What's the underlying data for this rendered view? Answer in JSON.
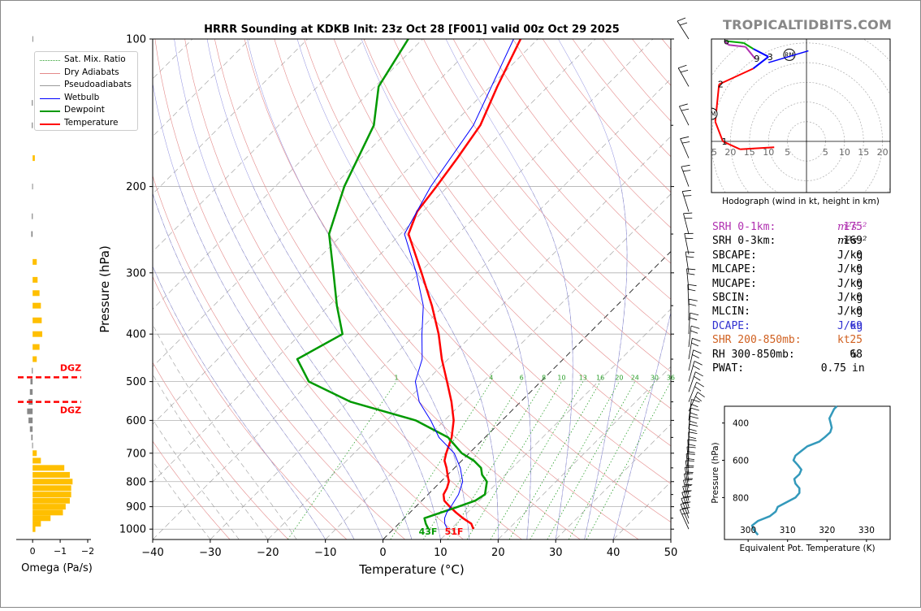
{
  "title": "HRRR Sounding at KDKB Init: 23z Oct 28 [F001] valid 00z Oct 29 2025",
  "watermark": "TROPICALTIDBITS.COM",
  "legend": [
    {
      "label": "Sat. Mix. Ratio",
      "color": "#2ca02c",
      "style": "dotted",
      "width": 1
    },
    {
      "label": "Dry Adiabats",
      "color": "#e48a8a",
      "style": "solid",
      "width": 1
    },
    {
      "label": "Pseudoadiabats",
      "color": "#9a9a9a",
      "style": "solid",
      "width": 1
    },
    {
      "label": "Wetbulb",
      "color": "#0000ff",
      "style": "solid",
      "width": 1
    },
    {
      "label": "Dewpoint",
      "color": "#009900",
      "style": "solid",
      "width": 2.5
    },
    {
      "label": "Temperature",
      "color": "#ff0000",
      "style": "solid",
      "width": 2.5
    }
  ],
  "surface_labels": {
    "dewpoint": "43F",
    "temperature": "51F"
  },
  "dgz_label": "DGZ",
  "mixing_ratio_labels": [
    "1",
    "4",
    "6",
    "8",
    "10",
    "13",
    "16",
    "20",
    "24",
    "30",
    "36"
  ],
  "stats": [
    {
      "label": "SRH 0-1km:",
      "value": "175",
      "unit": "m²s⁻²",
      "color": "#b030b0"
    },
    {
      "label": "SRH 0-3km:",
      "value": "169",
      "unit": "m²s⁻²",
      "color": "#000000"
    },
    {
      "label": "SBCAPE:",
      "value": "0",
      "unit": "J/kg",
      "color": "#000000"
    },
    {
      "label": "MLCAPE:",
      "value": "0",
      "unit": "J/kg",
      "color": "#000000"
    },
    {
      "label": "MUCAPE:",
      "value": "0",
      "unit": "J/kg",
      "color": "#000000"
    },
    {
      "label": "SBCIN:",
      "value": "0",
      "unit": "J/kg",
      "color": "#000000"
    },
    {
      "label": "MLCIN:",
      "value": "0",
      "unit": "J/kg",
      "color": "#000000"
    },
    {
      "label": "DCAPE:",
      "value": "69",
      "unit": "J/kg",
      "color": "#3030d0"
    },
    {
      "label": "SHR 200-850mb:",
      "value": "25",
      "unit": "kt",
      "color": "#d06020"
    },
    {
      "label": "RH 300-850mb:",
      "value": "68",
      "unit": "%",
      "color": "#000000"
    },
    {
      "label": "PWAT:",
      "value": "0.75",
      "unit": "in",
      "color": "#000000"
    }
  ],
  "hodograph": {
    "caption": "Hodograph (wind in kt, height in km)",
    "ring_labels": [
      "25",
      "20",
      "15",
      "10",
      "5",
      "5",
      "10",
      "15",
      "20"
    ],
    "markers": {
      "rm": "RM",
      "lm": "LM"
    },
    "height_labels": [
      "1",
      "2",
      "3",
      "6",
      "9"
    ]
  },
  "chart_data": [
    {
      "type": "line",
      "name": "skew-t",
      "title": "HRRR Sounding at KDKB Init: 23z Oct 28 [F001] valid 00z Oct 29 2025",
      "xlabel": "Temperature (°C)",
      "ylabel": "Pressure (hPa)",
      "xlim": [
        -40,
        50
      ],
      "ylim": [
        1050,
        100
      ],
      "y_scale": "log",
      "skew": "45°",
      "xticks": [
        -40,
        -30,
        -20,
        -10,
        0,
        10,
        20,
        30,
        40,
        50
      ],
      "yticks": [
        100,
        200,
        300,
        400,
        500,
        600,
        700,
        800,
        900,
        1000
      ],
      "series": [
        {
          "name": "Temperature",
          "color": "#ff0000",
          "points": [
            [
              1000,
              13.9
            ],
            [
              975,
              12.6
            ],
            [
              950,
              10.2
            ],
            [
              925,
              8.0
            ],
            [
              900,
              5.9
            ],
            [
              875,
              3.9
            ],
            [
              850,
              2.7
            ],
            [
              825,
              2.2
            ],
            [
              800,
              1.4
            ],
            [
              775,
              0.0
            ],
            [
              750,
              -1.4
            ],
            [
              725,
              -3.0
            ],
            [
              700,
              -4.0
            ],
            [
              650,
              -5.8
            ],
            [
              600,
              -8.4
            ],
            [
              550,
              -12.0
            ],
            [
              500,
              -16.3
            ],
            [
              450,
              -21.1
            ],
            [
              400,
              -26.0
            ],
            [
              350,
              -32.1
            ],
            [
              300,
              -39.6
            ],
            [
              250,
              -48.6
            ],
            [
              225,
              -51.0
            ],
            [
              200,
              -52.0
            ],
            [
              175,
              -53.3
            ],
            [
              150,
              -55.0
            ],
            [
              125,
              -58.8
            ],
            [
              100,
              -63.0
            ]
          ]
        },
        {
          "name": "Dewpoint",
          "color": "#009900",
          "points": [
            [
              1000,
              6.1
            ],
            [
              975,
              4.7
            ],
            [
              950,
              3.5
            ],
            [
              925,
              5.4
            ],
            [
              900,
              7.4
            ],
            [
              875,
              9.3
            ],
            [
              850,
              9.9
            ],
            [
              800,
              8.0
            ],
            [
              775,
              6.0
            ],
            [
              750,
              4.6
            ],
            [
              725,
              2.1
            ],
            [
              700,
              -1.3
            ],
            [
              650,
              -6.4
            ],
            [
              600,
              -15.0
            ],
            [
              550,
              -29.5
            ],
            [
              500,
              -40.3
            ],
            [
              450,
              -46.2
            ],
            [
              400,
              -42.7
            ],
            [
              350,
              -48.6
            ],
            [
              300,
              -54.9
            ],
            [
              250,
              -62.4
            ],
            [
              200,
              -68.0
            ],
            [
              150,
              -73.5
            ],
            [
              125,
              -79.4
            ],
            [
              100,
              -82.5
            ]
          ]
        },
        {
          "name": "Wetbulb",
          "color": "#0000ff",
          "points": [
            [
              1000,
              9.4
            ],
            [
              975,
              8.0
            ],
            [
              950,
              7.0
            ],
            [
              925,
              6.4
            ],
            [
              900,
              6.1
            ],
            [
              850,
              5.3
            ],
            [
              800,
              3.8
            ],
            [
              750,
              1.0
            ],
            [
              700,
              -2.6
            ],
            [
              650,
              -8.0
            ],
            [
              600,
              -12.4
            ],
            [
              550,
              -17.6
            ],
            [
              500,
              -21.8
            ],
            [
              450,
              -24.5
            ],
            [
              400,
              -28.9
            ],
            [
              350,
              -33.6
            ],
            [
              300,
              -40.5
            ],
            [
              250,
              -49.3
            ],
            [
              200,
              -53.0
            ],
            [
              150,
              -56.2
            ],
            [
              100,
              -64.2
            ]
          ]
        }
      ]
    },
    {
      "type": "bar",
      "name": "omega",
      "xlabel": "Omega (Pa/s)",
      "xlim": [
        0.3,
        -2.0
      ],
      "xticks": [
        0,
        -1,
        -2
      ],
      "dgz_top": 490,
      "dgz_bottom": 550,
      "points": [
        [
          100,
          0.01
        ],
        [
          135,
          0.03
        ],
        [
          150,
          0.03
        ],
        [
          175,
          -0.08
        ],
        [
          200,
          0.02
        ],
        [
          230,
          0.03
        ],
        [
          250,
          0.05
        ],
        [
          285,
          -0.15
        ],
        [
          310,
          -0.18
        ],
        [
          330,
          -0.25
        ],
        [
          350,
          -0.3
        ],
        [
          375,
          -0.33
        ],
        [
          400,
          -0.35
        ],
        [
          425,
          -0.25
        ],
        [
          450,
          -0.15
        ],
        [
          475,
          0.03
        ],
        [
          500,
          0.08
        ],
        [
          525,
          0.1
        ],
        [
          550,
          0.15
        ],
        [
          575,
          0.2
        ],
        [
          600,
          0.15
        ],
        [
          625,
          0.1
        ],
        [
          650,
          0.05
        ],
        [
          675,
          0.02
        ],
        [
          700,
          -0.15
        ],
        [
          725,
          -0.3
        ],
        [
          750,
          -1.15
        ],
        [
          775,
          -1.35
        ],
        [
          800,
          -1.45
        ],
        [
          825,
          -1.4
        ],
        [
          850,
          -1.4
        ],
        [
          875,
          -1.35
        ],
        [
          900,
          -1.2
        ],
        [
          925,
          -1.1
        ],
        [
          950,
          -0.65
        ],
        [
          975,
          -0.3
        ],
        [
          1000,
          -0.1
        ]
      ]
    },
    {
      "type": "line",
      "name": "theta-e",
      "xlabel": "Equivalent Pot. Temperature (K)",
      "ylabel": "Pressure (hPa)",
      "xlim": [
        294,
        336
      ],
      "ylim": [
        1025,
        310
      ],
      "xticks": [
        300,
        310,
        320,
        330
      ],
      "yticks": [
        400,
        600,
        800
      ],
      "series": [
        {
          "name": "Theta-E",
          "color": "#3399bb",
          "points": [
            [
              1000,
              302.5
            ],
            [
              975,
              301.5
            ],
            [
              950,
              301.0
            ],
            [
              925,
              302.5
            ],
            [
              900,
              305.5
            ],
            [
              875,
              307.0
            ],
            [
              850,
              307.5
            ],
            [
              800,
              312.0
            ],
            [
              775,
              313.0
            ],
            [
              750,
              313.0
            ],
            [
              725,
              312.0
            ],
            [
              700,
              311.7
            ],
            [
              675,
              313.0
            ],
            [
              650,
              313.5
            ],
            [
              625,
              312.6
            ],
            [
              600,
              311.5
            ],
            [
              575,
              312.0
            ],
            [
              550,
              313.5
            ],
            [
              525,
              315.0
            ],
            [
              500,
              318.0
            ],
            [
              475,
              319.5
            ],
            [
              450,
              320.8
            ],
            [
              425,
              321.2
            ],
            [
              400,
              320.9
            ],
            [
              375,
              320.6
            ],
            [
              350,
              321.2
            ],
            [
              325,
              321.8
            ],
            [
              310,
              322.5
            ]
          ]
        }
      ]
    },
    {
      "type": "line",
      "name": "hodograph",
      "xlabel": "Hodograph (wind in kt, height in km)",
      "xlim": [
        -25,
        22
      ],
      "ylim": [
        -13,
        26
      ],
      "rings": [
        5,
        10,
        15,
        20,
        25,
        30
      ],
      "heights_km": [
        0.0,
        0.5,
        1.0,
        1.5,
        2.0,
        2.5,
        3.0,
        4.0,
        5.0,
        6.0,
        7.0,
        8.0,
        9.0
      ],
      "u": [
        -8.5,
        -17.5,
        -22.0,
        -24.0,
        -23.0,
        -14.0,
        -10.0,
        -14.0,
        -16.5,
        -21.5,
        -20.5,
        -16.0,
        -13.5
      ],
      "v": [
        -1.5,
        -2.0,
        0.0,
        5.0,
        14.5,
        18.5,
        21.5,
        23.5,
        25.0,
        25.5,
        24.5,
        24.0,
        21.0
      ],
      "storm_motion": {
        "rm": [
          -4.5,
          22.0
        ],
        "lm": [
          -25.0,
          7.0
        ]
      }
    }
  ]
}
